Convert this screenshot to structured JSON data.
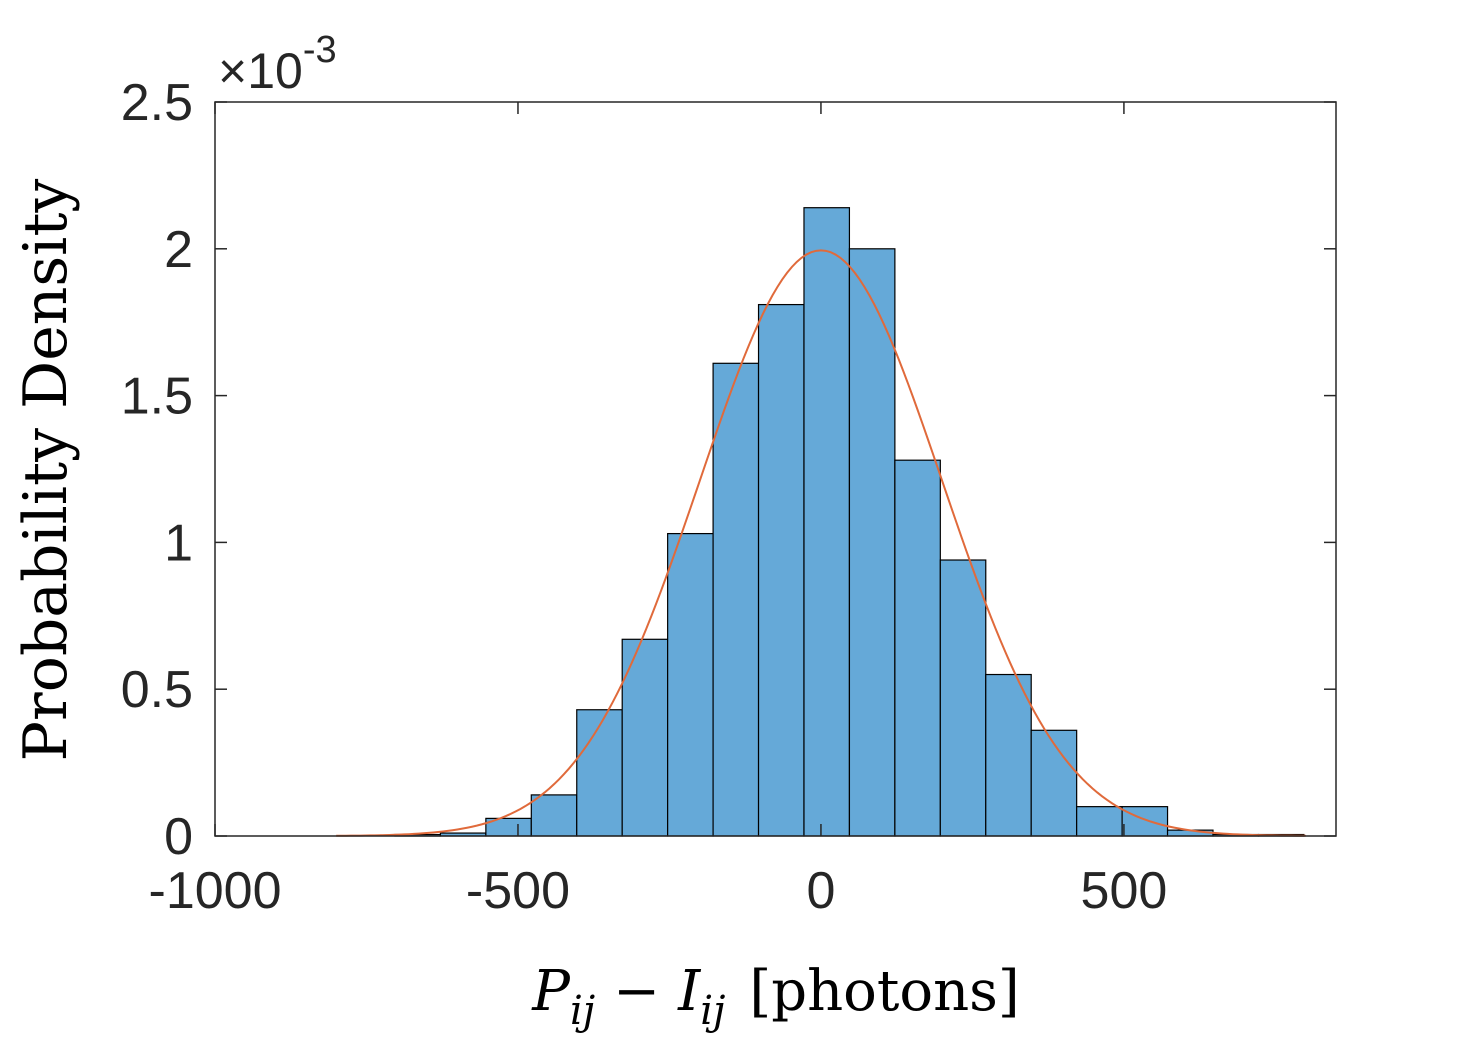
{
  "chart_data": {
    "type": "bar",
    "subtype": "histogram",
    "xlabel": {
      "var1": "P",
      "sub1": "ij",
      "minus": "−",
      "var2": "I",
      "sub2": "ij",
      "unit": "[photons]"
    },
    "ylabel": "Probability Density",
    "y_exponent_label": {
      "prefix": "×10",
      "exponent": "-3"
    },
    "xlim": [
      -1000,
      850
    ],
    "ylim": [
      0,
      0.0025
    ],
    "x_ticks": [
      {
        "value": -1000,
        "label": "-1000"
      },
      {
        "value": -500,
        "label": "-500"
      },
      {
        "value": 0,
        "label": "0"
      },
      {
        "value": 500,
        "label": "500"
      }
    ],
    "y_ticks": [
      {
        "value": 0,
        "label": "0"
      },
      {
        "value": 0.0005,
        "label": "0.5"
      },
      {
        "value": 0.001,
        "label": "1"
      },
      {
        "value": 0.0015,
        "label": "1.5"
      },
      {
        "value": 0.002,
        "label": "2"
      },
      {
        "value": 0.0025,
        "label": "2.5"
      }
    ],
    "bins": [
      {
        "x0": -703,
        "x1": -628,
        "value": 5e-06
      },
      {
        "x0": -628,
        "x1": -553,
        "value": 1e-05
      },
      {
        "x0": -553,
        "x1": -478,
        "value": 6e-05
      },
      {
        "x0": -478,
        "x1": -403,
        "value": 0.00014
      },
      {
        "x0": -403,
        "x1": -328,
        "value": 0.00043
      },
      {
        "x0": -328,
        "x1": -253,
        "value": 0.00067
      },
      {
        "x0": -253,
        "x1": -178,
        "value": 0.00103
      },
      {
        "x0": -178,
        "x1": -103,
        "value": 0.00161
      },
      {
        "x0": -103,
        "x1": -28,
        "value": 0.00181
      },
      {
        "x0": -28,
        "x1": 47,
        "value": 0.00214
      },
      {
        "x0": 47,
        "x1": 122,
        "value": 0.002
      },
      {
        "x0": 122,
        "x1": 197,
        "value": 0.00128
      },
      {
        "x0": 197,
        "x1": 272,
        "value": 0.00094
      },
      {
        "x0": 272,
        "x1": 347,
        "value": 0.00055
      },
      {
        "x0": 347,
        "x1": 422,
        "value": 0.00036
      },
      {
        "x0": 422,
        "x1": 497,
        "value": 0.0001
      },
      {
        "x0": 497,
        "x1": 572,
        "value": 0.0001
      },
      {
        "x0": 572,
        "x1": 647,
        "value": 2e-05
      },
      {
        "x0": 647,
        "x1": 722,
        "value": 5e-06
      },
      {
        "x0": 722,
        "x1": 797,
        "value": 5e-06
      }
    ],
    "fit": {
      "type": "normal",
      "mean": 0,
      "sd": 200,
      "x_range": [
        -800,
        800
      ]
    },
    "bar_color": "#65A9D8",
    "bar_edge_color": "#000000",
    "fit_color": "#E06A3B",
    "grid": false,
    "box": true
  }
}
